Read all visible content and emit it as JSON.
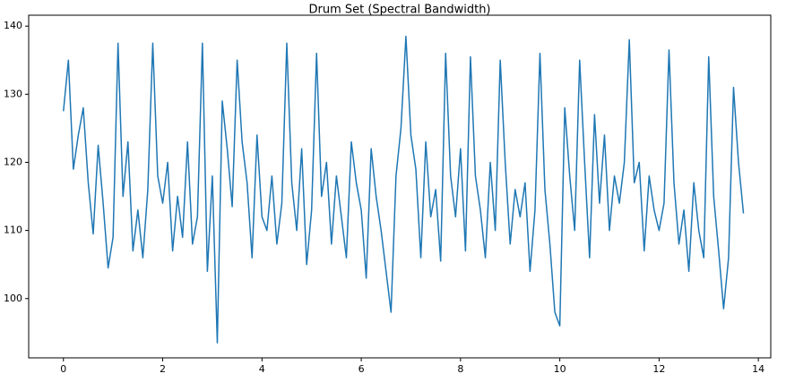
{
  "chart_data": {
    "type": "line",
    "title": "Drum Set (Spectral Bandwidth)",
    "x": [
      0.0,
      0.1,
      0.2,
      0.3,
      0.4,
      0.5,
      0.6,
      0.7,
      0.8,
      0.9,
      1.0,
      1.1,
      1.2,
      1.3,
      1.4,
      1.5,
      1.6,
      1.7,
      1.8,
      1.9,
      2.0,
      2.1,
      2.2,
      2.3,
      2.4,
      2.5,
      2.6,
      2.7,
      2.8,
      2.9,
      3.0,
      3.1,
      3.2,
      3.3,
      3.4,
      3.5,
      3.6,
      3.7,
      3.8,
      3.9,
      4.0,
      4.1,
      4.2,
      4.3,
      4.4,
      4.5,
      4.6,
      4.7,
      4.8,
      4.9,
      5.0,
      5.1,
      5.2,
      5.3,
      5.4,
      5.5,
      5.6,
      5.7,
      5.8,
      5.9,
      6.0,
      6.1,
      6.2,
      6.3,
      6.4,
      6.5,
      6.6,
      6.7,
      6.8,
      6.9,
      7.0,
      7.1,
      7.2,
      7.3,
      7.4,
      7.5,
      7.6,
      7.7,
      7.8,
      7.9,
      8.0,
      8.1,
      8.2,
      8.3,
      8.4,
      8.5,
      8.6,
      8.7,
      8.8,
      8.9,
      9.0,
      9.1,
      9.2,
      9.3,
      9.4,
      9.5,
      9.6,
      9.7,
      9.8,
      9.9,
      10.0,
      10.1,
      10.2,
      10.3,
      10.4,
      10.5,
      10.6,
      10.7,
      10.8,
      10.9,
      11.0,
      11.1,
      11.2,
      11.3,
      11.4,
      11.5,
      11.6,
      11.7,
      11.8,
      11.9,
      12.0,
      12.1,
      12.2,
      12.3,
      12.4,
      12.5,
      12.6,
      12.7,
      12.8,
      12.9,
      13.0,
      13.1,
      13.2,
      13.3,
      13.4,
      13.5,
      13.6,
      13.7
    ],
    "series": [
      {
        "color": "#1f77b4",
        "values": [
          127.5,
          135,
          119,
          124,
          128,
          117,
          109.5,
          122.5,
          114,
          104.5,
          109,
          137.5,
          115,
          123,
          107,
          113,
          106,
          116,
          137.5,
          118,
          114,
          120,
          107,
          115,
          109,
          123,
          108,
          112,
          137.5,
          104,
          118,
          93.5,
          129,
          122,
          113.5,
          135,
          123,
          117,
          106,
          124,
          112,
          110,
          118,
          108,
          114,
          137.5,
          117,
          110,
          122,
          105,
          113,
          136,
          115,
          120,
          108,
          118,
          112,
          106,
          123,
          117,
          113,
          103,
          122,
          115,
          110,
          104,
          98,
          118,
          125,
          138.5,
          124,
          119,
          106,
          123,
          112,
          116,
          105.5,
          136,
          118,
          112,
          122,
          107,
          135.5,
          118,
          113,
          106,
          120,
          110,
          135,
          120,
          108,
          116,
          112,
          117,
          104,
          113,
          136,
          116,
          108,
          98,
          96,
          128,
          118,
          110,
          135,
          120,
          106,
          127,
          114,
          124,
          110,
          118,
          114,
          120,
          138,
          117,
          120,
          107,
          118,
          113,
          110,
          114,
          136.5,
          117,
          108,
          113,
          104,
          117,
          110,
          106,
          135.5,
          115,
          107,
          98.5,
          106,
          131,
          120,
          112.5
        ]
      }
    ],
    "xlim": [
      -0.7,
      14.25
    ],
    "ylim": [
      91.3,
      141.6
    ],
    "xticks": [
      0,
      2,
      4,
      6,
      8,
      10,
      12,
      14
    ],
    "yticks": [
      100,
      110,
      120,
      130,
      140
    ]
  }
}
